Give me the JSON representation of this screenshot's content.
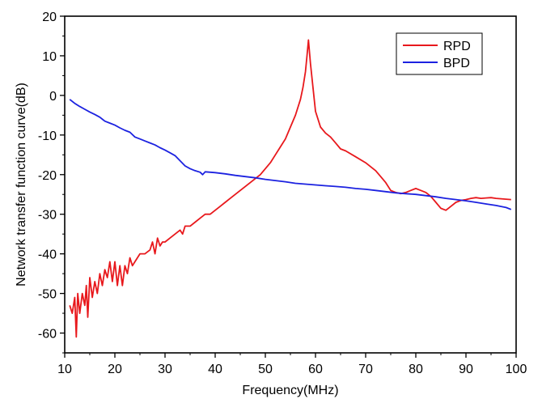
{
  "chart_data": {
    "type": "line",
    "xlabel": "Frequency(MHz)",
    "ylabel": "Network transfer function curve(dB)",
    "xlim": [
      10,
      100
    ],
    "ylim": [
      -65,
      20
    ],
    "x_ticks": [
      "10",
      "20",
      "30",
      "40",
      "50",
      "60",
      "70",
      "80",
      "90",
      "100"
    ],
    "y_ticks": [
      "20",
      "10",
      "0",
      "-10",
      "-20",
      "-30",
      "-40",
      "-50",
      "-60"
    ],
    "grid": false,
    "legend_position": "top-right",
    "series": [
      {
        "name": "RPD",
        "color": "#e8181c",
        "x": [
          11,
          11.5,
          12,
          12.3,
          12.6,
          13,
          13.5,
          14,
          14.3,
          14.6,
          15,
          15.5,
          16,
          16.5,
          17,
          17.5,
          18,
          18.5,
          19,
          19.5,
          20,
          20.5,
          21,
          21.5,
          22,
          22.5,
          23,
          23.5,
          24,
          25,
          26,
          27,
          27.5,
          28,
          28.5,
          29,
          29.5,
          30,
          31,
          32,
          33,
          33.5,
          34,
          35,
          36,
          37,
          38,
          39,
          40,
          41,
          42,
          43,
          44,
          45,
          46,
          47,
          48,
          49,
          50,
          51,
          52,
          53,
          54,
          55,
          56,
          57,
          57.5,
          58,
          58.3,
          58.6,
          59,
          59.5,
          60,
          61,
          62,
          63,
          64,
          65,
          66,
          68,
          70,
          72,
          73,
          74,
          75,
          76,
          77,
          78,
          79,
          80,
          81,
          82,
          83,
          84,
          85,
          86,
          87,
          88,
          89,
          90,
          91,
          92,
          93,
          94,
          95,
          96,
          97,
          98,
          99
        ],
        "y": [
          -53,
          -55,
          -51,
          -61,
          -50,
          -55,
          -50,
          -53,
          -48,
          -56,
          -46,
          -51,
          -47,
          -50,
          -45,
          -48,
          -44,
          -46,
          -42,
          -47,
          -42,
          -48,
          -43,
          -48,
          -43,
          -45,
          -41,
          -43,
          -42,
          -40,
          -40,
          -39,
          -37,
          -40,
          -36,
          -38,
          -37,
          -37,
          -36,
          -35,
          -34,
          -35,
          -33,
          -33,
          -32,
          -31,
          -30,
          -30,
          -29,
          -28,
          -27,
          -26,
          -25,
          -24,
          -23,
          -22,
          -21,
          -20,
          -18.5,
          -17,
          -15,
          -13,
          -11,
          -8,
          -5,
          -1,
          2,
          6,
          10,
          14,
          8,
          2,
          -4,
          -8,
          -9.5,
          -10.5,
          -12,
          -13.5,
          -14,
          -15.5,
          -17,
          -19,
          -20.5,
          -22,
          -24,
          -24.5,
          -24.8,
          -24.5,
          -24,
          -23.5,
          -24,
          -24.5,
          -25.5,
          -27,
          -28.5,
          -29,
          -28,
          -27,
          -26.5,
          -26.3,
          -26,
          -25.8,
          -26,
          -25.9,
          -25.8,
          -26,
          -26.1,
          -26.2,
          -26.3
        ]
      },
      {
        "name": "BPD",
        "color": "#1c22e0",
        "x": [
          11,
          12,
          13,
          14,
          15,
          16,
          17,
          18,
          19,
          20,
          21,
          22,
          23,
          24,
          25,
          26,
          27,
          28,
          29,
          30,
          31,
          32,
          33,
          34,
          35,
          36,
          37,
          37.5,
          38,
          40,
          42,
          44,
          46,
          48,
          50,
          52,
          54,
          56,
          58,
          60,
          62,
          64,
          66,
          68,
          70,
          72,
          74,
          76,
          78,
          80,
          82,
          84,
          86,
          88,
          90,
          92,
          94,
          96,
          98,
          99
        ],
        "y": [
          -1,
          -2,
          -2.8,
          -3.5,
          -4.2,
          -4.8,
          -5.5,
          -6.5,
          -7,
          -7.5,
          -8.2,
          -8.8,
          -9.3,
          -10.5,
          -11,
          -11.5,
          -12,
          -12.5,
          -13.2,
          -13.8,
          -14.5,
          -15.2,
          -16.5,
          -17.8,
          -18.5,
          -19,
          -19.4,
          -20,
          -19.3,
          -19.5,
          -19.8,
          -20.2,
          -20.5,
          -20.8,
          -21.2,
          -21.5,
          -21.8,
          -22.2,
          -22.4,
          -22.6,
          -22.8,
          -23,
          -23.2,
          -23.5,
          -23.7,
          -24,
          -24.3,
          -24.6,
          -24.8,
          -25,
          -25.3,
          -25.6,
          -26,
          -26.3,
          -26.6,
          -27,
          -27.4,
          -27.8,
          -28.3,
          -28.8
        ]
      }
    ]
  }
}
